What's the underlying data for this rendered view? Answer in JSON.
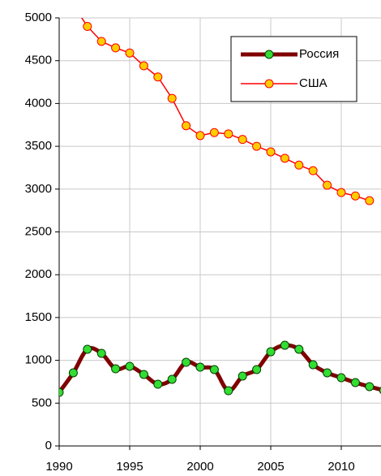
{
  "chart_data": {
    "type": "line",
    "x": [
      1990,
      1991,
      1992,
      1993,
      1994,
      1995,
      1996,
      1997,
      1998,
      1999,
      2000,
      2001,
      2002,
      2003,
      2004,
      2005,
      2006,
      2007,
      2008,
      2009,
      2010,
      2011,
      2012,
      2013
    ],
    "series": [
      {
        "name": "Россия",
        "color": "#800000",
        "marker_color": "#33dd33",
        "values": [
          626,
          854,
          1129,
          1082,
          901,
          930,
          835,
          721,
          778,
          977,
          920,
          892,
          645,
          816,
          892,
          1100,
          1176,
          1129,
          949,
          854,
          797,
          740,
          693,
          650
        ]
      },
      {
        "name": "США",
        "color": "#ff0000",
        "marker_color": "#ffcc00",
        "values": [
          null,
          5150,
          4900,
          4725,
          4650,
          4590,
          4440,
          4310,
          4060,
          3740,
          3625,
          3660,
          3645,
          3580,
          3500,
          3435,
          3360,
          3280,
          3215,
          3045,
          2960,
          2920,
          2865,
          null
        ]
      }
    ],
    "xlim": [
      1990,
      2012.7
    ],
    "xticks": [
      1990,
      1995,
      2000,
      2005,
      2010
    ],
    "ylim": [
      0,
      5000
    ],
    "yticks": [
      0,
      500,
      1000,
      1500,
      2000,
      2500,
      3000,
      3500,
      4000,
      4500,
      5000
    ],
    "grid": true,
    "legend": "upper right"
  }
}
